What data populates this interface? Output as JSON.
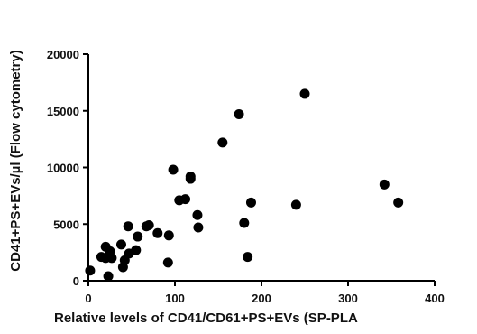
{
  "chart_data": {
    "type": "scatter",
    "title": "",
    "xlabel": "Relative levels of CD41/CD61+PS+EVs (SP-PLA",
    "ylabel": "CD41+PS+EVs/µl (Flow cytometry)",
    "xlim": [
      0,
      400
    ],
    "ylim": [
      0,
      20000
    ],
    "x_ticks": [
      0,
      100,
      200,
      300,
      400
    ],
    "y_ticks": [
      0,
      5000,
      10000,
      15000,
      20000
    ],
    "x_tick_labels": [
      "0",
      "100",
      "200",
      "300",
      "400"
    ],
    "y_tick_labels": [
      "0",
      "5000",
      "10000",
      "15000",
      "20000"
    ],
    "grid": false,
    "legend": "none",
    "marker_color": "#000000",
    "points": [
      {
        "x": 2,
        "y": 900
      },
      {
        "x": 15,
        "y": 2100
      },
      {
        "x": 20,
        "y": 3000
      },
      {
        "x": 20,
        "y": 2000
      },
      {
        "x": 23,
        "y": 400
      },
      {
        "x": 25,
        "y": 2600
      },
      {
        "x": 27,
        "y": 2000
      },
      {
        "x": 38,
        "y": 3200
      },
      {
        "x": 40,
        "y": 1200
      },
      {
        "x": 42,
        "y": 1800
      },
      {
        "x": 46,
        "y": 4800
      },
      {
        "x": 47,
        "y": 2400
      },
      {
        "x": 55,
        "y": 2700
      },
      {
        "x": 57,
        "y": 3900
      },
      {
        "x": 67,
        "y": 4800
      },
      {
        "x": 70,
        "y": 4900
      },
      {
        "x": 80,
        "y": 4200
      },
      {
        "x": 92,
        "y": 1600
      },
      {
        "x": 93,
        "y": 4000
      },
      {
        "x": 98,
        "y": 9800
      },
      {
        "x": 105,
        "y": 7100
      },
      {
        "x": 112,
        "y": 7200
      },
      {
        "x": 118,
        "y": 9000
      },
      {
        "x": 118,
        "y": 9200
      },
      {
        "x": 126,
        "y": 5800
      },
      {
        "x": 127,
        "y": 4700
      },
      {
        "x": 155,
        "y": 12200
      },
      {
        "x": 174,
        "y": 14700
      },
      {
        "x": 180,
        "y": 5100
      },
      {
        "x": 184,
        "y": 2100
      },
      {
        "x": 188,
        "y": 6900
      },
      {
        "x": 240,
        "y": 6700
      },
      {
        "x": 250,
        "y": 16500
      },
      {
        "x": 342,
        "y": 8500
      },
      {
        "x": 358,
        "y": 6900
      }
    ]
  }
}
